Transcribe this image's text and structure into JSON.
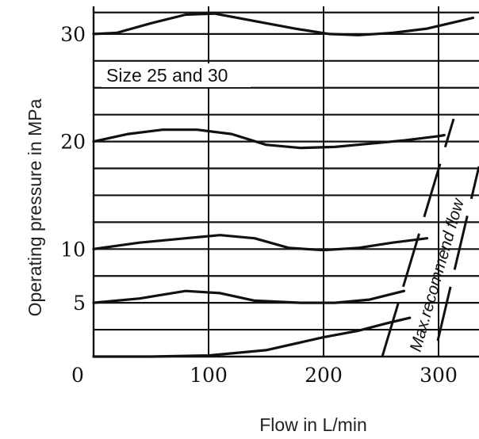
{
  "chart_data": {
    "type": "line",
    "xlabel": "Flow in L/min",
    "ylabel": "Operating pressure in MPa",
    "xlim": [
      0,
      330
    ],
    "ylim": [
      0,
      32
    ],
    "x_ticks": [
      {
        "value": 0,
        "label": "0"
      },
      {
        "value": 100,
        "label": "100"
      },
      {
        "value": 200,
        "label": "200"
      },
      {
        "value": 300,
        "label": "300"
      }
    ],
    "y_ticks": [
      {
        "value": 5,
        "label": "5"
      },
      {
        "value": 10,
        "label": "10"
      },
      {
        "value": 20,
        "label": "20"
      },
      {
        "value": 30,
        "label": "30"
      }
    ],
    "grid": true,
    "grid_y": [
      2.5,
      5,
      7.5,
      10,
      12.5,
      15,
      17.5,
      20,
      22.5,
      25,
      27.5,
      30,
      32
    ],
    "annotation": "Size 25 and 30",
    "max_flow_label": "Max.recommend flow",
    "series": [
      {
        "x": [
          0,
          20,
          50,
          80,
          105,
          140,
          175,
          205,
          230,
          260,
          290,
          310,
          330
        ],
        "y": [
          30,
          30.1,
          31,
          31.8,
          31.9,
          31.2,
          30.5,
          30,
          29.9,
          30.1,
          30.5,
          31,
          31.5
        ]
      },
      {
        "x": [
          0,
          30,
          60,
          90,
          120,
          150,
          180,
          210,
          240,
          270,
          300,
          305
        ],
        "y": [
          20,
          20.7,
          21.1,
          21.1,
          20.7,
          19.7,
          19.4,
          19.5,
          19.8,
          20.1,
          20.5,
          20.6
        ]
      },
      {
        "x": [
          0,
          40,
          80,
          110,
          140,
          170,
          200,
          230,
          260,
          290
        ],
        "y": [
          10,
          10.6,
          11,
          11.3,
          11,
          10.1,
          9.9,
          10.1,
          10.6,
          11
        ]
      },
      {
        "x": [
          0,
          40,
          80,
          110,
          140,
          180,
          210,
          240,
          270
        ],
        "y": [
          5,
          5.4,
          6.1,
          5.9,
          5.2,
          5,
          5,
          5.3,
          6.1
        ]
      },
      {
        "x": [
          0,
          50,
          100,
          150,
          200,
          230,
          255,
          275
        ],
        "y": [
          0,
          0,
          0.1,
          0.6,
          1.8,
          2.4,
          3.1,
          3.6
        ]
      }
    ]
  }
}
